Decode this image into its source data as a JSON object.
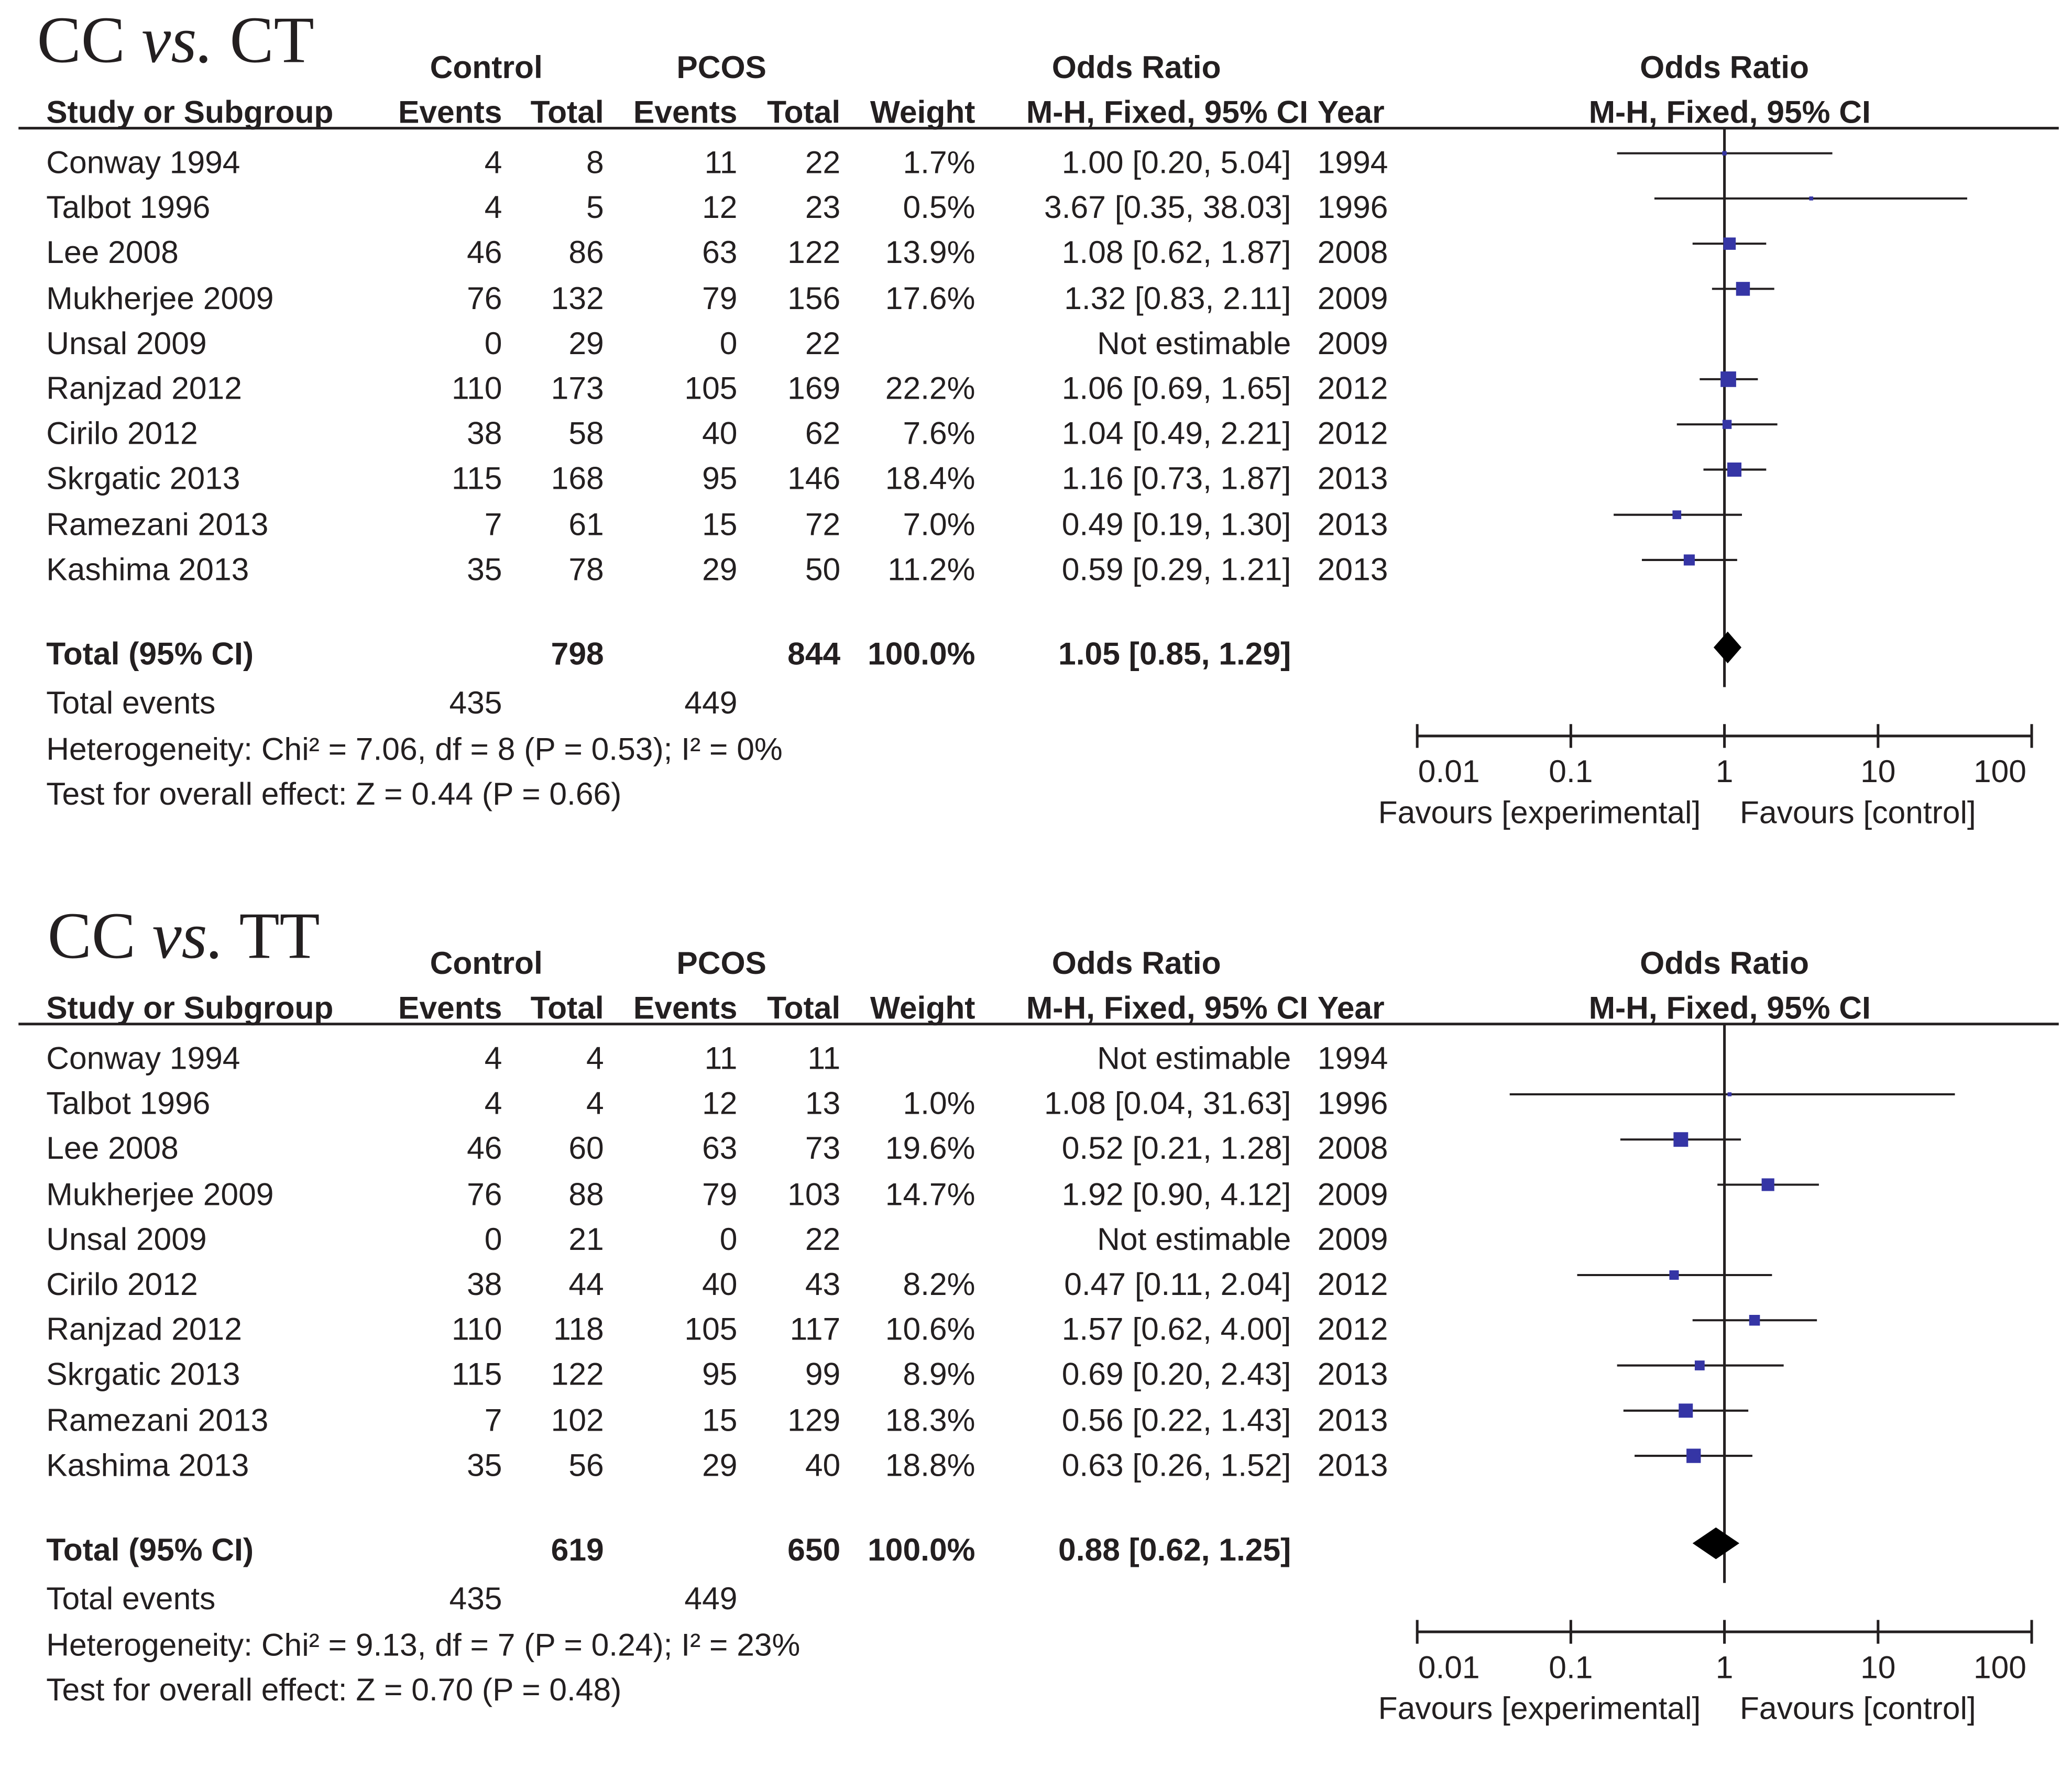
{
  "headers": {
    "group_control": "Control",
    "group_pcos": "PCOS",
    "odds_ratio": "Odds Ratio",
    "study": "Study or Subgroup",
    "events": "Events",
    "total": "Total",
    "weight": "Weight",
    "method": "M-H, Fixed, 95% CI",
    "year": "Year"
  },
  "colors": {
    "square": "#3535a5",
    "text": "#231f20"
  },
  "chart_data": [
    {
      "type": "forest",
      "title_prefix": "CC",
      "title_vs": "vs.",
      "title_suffix": "CT",
      "xscale": "log",
      "xlim": [
        0.01,
        100
      ],
      "xticks": [
        "0.01",
        "0.1",
        "1",
        "10",
        "100"
      ],
      "favours_left": "Favours [experimental]",
      "favours_right": "Favours [control]",
      "rows": [
        {
          "study": "Conway 1994",
          "ce": "4",
          "ct": "8",
          "pe": "11",
          "pt": "22",
          "weight": "1.7%",
          "ci_text": "1.00 [0.20, 5.04]",
          "year": "1994",
          "or": 1.0,
          "lo": 0.2,
          "hi": 5.04,
          "w": 1.7
        },
        {
          "study": "Talbot 1996",
          "ce": "4",
          "ct": "5",
          "pe": "12",
          "pt": "23",
          "weight": "0.5%",
          "ci_text": "3.67 [0.35, 38.03]",
          "year": "1996",
          "or": 3.67,
          "lo": 0.35,
          "hi": 38.03,
          "w": 0.5
        },
        {
          "study": "Lee 2008",
          "ce": "46",
          "ct": "86",
          "pe": "63",
          "pt": "122",
          "weight": "13.9%",
          "ci_text": "1.08 [0.62, 1.87]",
          "year": "2008",
          "or": 1.08,
          "lo": 0.62,
          "hi": 1.87,
          "w": 13.9
        },
        {
          "study": "Mukherjee 2009",
          "ce": "76",
          "ct": "132",
          "pe": "79",
          "pt": "156",
          "weight": "17.6%",
          "ci_text": "1.32 [0.83, 2.11]",
          "year": "2009",
          "or": 1.32,
          "lo": 0.83,
          "hi": 2.11,
          "w": 17.6
        },
        {
          "study": "Unsal 2009",
          "ce": "0",
          "ct": "29",
          "pe": "0",
          "pt": "22",
          "weight": "",
          "ci_text": "Not estimable",
          "year": "2009",
          "or": null,
          "lo": null,
          "hi": null,
          "w": 0
        },
        {
          "study": "Ranjzad 2012",
          "ce": "110",
          "ct": "173",
          "pe": "105",
          "pt": "169",
          "weight": "22.2%",
          "ci_text": "1.06 [0.69, 1.65]",
          "year": "2012",
          "or": 1.06,
          "lo": 0.69,
          "hi": 1.65,
          "w": 22.2
        },
        {
          "study": "Cirilo 2012",
          "ce": "38",
          "ct": "58",
          "pe": "40",
          "pt": "62",
          "weight": "7.6%",
          "ci_text": "1.04 [0.49, 2.21]",
          "year": "2012",
          "or": 1.04,
          "lo": 0.49,
          "hi": 2.21,
          "w": 7.6
        },
        {
          "study": "Skrgatic 2013",
          "ce": "115",
          "ct": "168",
          "pe": "95",
          "pt": "146",
          "weight": "18.4%",
          "ci_text": "1.16 [0.73, 1.87]",
          "year": "2013",
          "or": 1.16,
          "lo": 0.73,
          "hi": 1.87,
          "w": 18.4
        },
        {
          "study": "Ramezani 2013",
          "ce": "7",
          "ct": "61",
          "pe": "15",
          "pt": "72",
          "weight": "7.0%",
          "ci_text": "0.49 [0.19, 1.30]",
          "year": "2013",
          "or": 0.49,
          "lo": 0.19,
          "hi": 1.3,
          "w": 7.0
        },
        {
          "study": "Kashima 2013",
          "ce": "35",
          "ct": "78",
          "pe": "29",
          "pt": "50",
          "weight": "11.2%",
          "ci_text": "0.59 [0.29, 1.21]",
          "year": "2013",
          "or": 0.59,
          "lo": 0.29,
          "hi": 1.21,
          "w": 11.2
        }
      ],
      "total": {
        "label": "Total (95% CI)",
        "ct": "798",
        "pt": "844",
        "weight": "100.0%",
        "ci_text": "1.05 [0.85, 1.29]",
        "or": 1.05,
        "lo": 0.85,
        "hi": 1.29
      },
      "total_events": {
        "label": "Total events",
        "control": "435",
        "pcos": "449"
      },
      "heterogeneity": "Heterogeneity: Chi² = 7.06, df = 8 (P = 0.53); I² = 0%",
      "overall_effect": "Test for overall effect: Z = 0.44 (P = 0.66)"
    },
    {
      "type": "forest",
      "title_prefix": "CC",
      "title_vs": "vs.",
      "title_suffix": "TT",
      "xscale": "log",
      "xlim": [
        0.01,
        100
      ],
      "xticks": [
        "0.01",
        "0.1",
        "1",
        "10",
        "100"
      ],
      "favours_left": "Favours [experimental]",
      "favours_right": "Favours [control]",
      "rows": [
        {
          "study": "Conway 1994",
          "ce": "4",
          "ct": "4",
          "pe": "11",
          "pt": "11",
          "weight": "",
          "ci_text": "Not estimable",
          "year": "1994",
          "or": null,
          "lo": null,
          "hi": null,
          "w": 0
        },
        {
          "study": "Talbot 1996",
          "ce": "4",
          "ct": "4",
          "pe": "12",
          "pt": "13",
          "weight": "1.0%",
          "ci_text": "1.08 [0.04, 31.63]",
          "year": "1996",
          "or": 1.08,
          "lo": 0.04,
          "hi": 31.63,
          "w": 1.0
        },
        {
          "study": "Lee 2008",
          "ce": "46",
          "ct": "60",
          "pe": "63",
          "pt": "73",
          "weight": "19.6%",
          "ci_text": "0.52 [0.21, 1.28]",
          "year": "2008",
          "or": 0.52,
          "lo": 0.21,
          "hi": 1.28,
          "w": 19.6
        },
        {
          "study": "Mukherjee 2009",
          "ce": "76",
          "ct": "88",
          "pe": "79",
          "pt": "103",
          "weight": "14.7%",
          "ci_text": "1.92 [0.90, 4.12]",
          "year": "2009",
          "or": 1.92,
          "lo": 0.9,
          "hi": 4.12,
          "w": 14.7
        },
        {
          "study": "Unsal 2009",
          "ce": "0",
          "ct": "21",
          "pe": "0",
          "pt": "22",
          "weight": "",
          "ci_text": "Not estimable",
          "year": "2009",
          "or": null,
          "lo": null,
          "hi": null,
          "w": 0
        },
        {
          "study": "Cirilo 2012",
          "ce": "38",
          "ct": "44",
          "pe": "40",
          "pt": "43",
          "weight": "8.2%",
          "ci_text": "0.47 [0.11, 2.04]",
          "year": "2012",
          "or": 0.47,
          "lo": 0.11,
          "hi": 2.04,
          "w": 8.2
        },
        {
          "study": "Ranjzad 2012",
          "ce": "110",
          "ct": "118",
          "pe": "105",
          "pt": "117",
          "weight": "10.6%",
          "ci_text": "1.57 [0.62, 4.00]",
          "year": "2012",
          "or": 1.57,
          "lo": 0.62,
          "hi": 4.0,
          "w": 10.6
        },
        {
          "study": "Skrgatic 2013",
          "ce": "115",
          "ct": "122",
          "pe": "95",
          "pt": "99",
          "weight": "8.9%",
          "ci_text": "0.69 [0.20, 2.43]",
          "year": "2013",
          "or": 0.69,
          "lo": 0.2,
          "hi": 2.43,
          "w": 8.9
        },
        {
          "study": "Ramezani 2013",
          "ce": "7",
          "ct": "102",
          "pe": "15",
          "pt": "129",
          "weight": "18.3%",
          "ci_text": "0.56 [0.22, 1.43]",
          "year": "2013",
          "or": 0.56,
          "lo": 0.22,
          "hi": 1.43,
          "w": 18.3
        },
        {
          "study": "Kashima 2013",
          "ce": "35",
          "ct": "56",
          "pe": "29",
          "pt": "40",
          "weight": "18.8%",
          "ci_text": "0.63 [0.26, 1.52]",
          "year": "2013",
          "or": 0.63,
          "lo": 0.26,
          "hi": 1.52,
          "w": 18.8
        }
      ],
      "total": {
        "label": "Total (95% CI)",
        "ct": "619",
        "pt": "650",
        "weight": "100.0%",
        "ci_text": "0.88 [0.62, 1.25]",
        "or": 0.88,
        "lo": 0.62,
        "hi": 1.25
      },
      "total_events": {
        "label": "Total events",
        "control": "435",
        "pcos": "449"
      },
      "heterogeneity": "Heterogeneity: Chi² = 9.13, df = 7 (P = 0.24); I² = 23%",
      "overall_effect": "Test for overall effect: Z = 0.70 (P = 0.48)"
    }
  ]
}
